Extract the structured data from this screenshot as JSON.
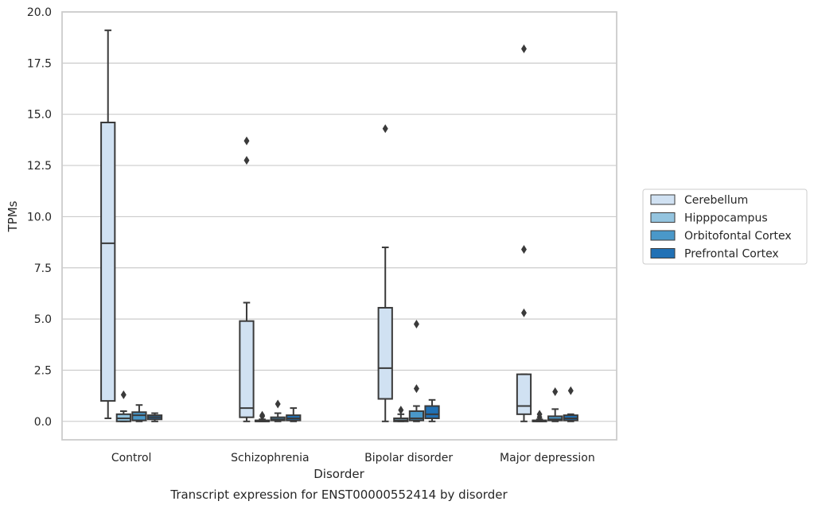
{
  "chart_data": {
    "type": "box",
    "title": "",
    "caption": "Transcript expression for ENST00000552414 by disorder",
    "xlabel": "Disorder",
    "ylabel": "TPMs",
    "ylim": [
      -0.9,
      20.0
    ],
    "yticks": [
      "0.0",
      "2.5",
      "5.0",
      "7.5",
      "10.0",
      "12.5",
      "15.0",
      "17.5",
      "20.0"
    ],
    "categories": [
      "Control",
      "Schizophrenia",
      "Bipolar disorder",
      "Major depression"
    ],
    "grid": "horizontal",
    "legend_position": "right",
    "series": [
      {
        "name": "Cerebellum",
        "color": "#d0e1f2",
        "boxes": [
          {
            "whislo": 0.15,
            "q1": 1.0,
            "med": 8.7,
            "q3": 14.6,
            "whishi": 19.1,
            "fliers": []
          },
          {
            "whislo": 0.0,
            "q1": 0.2,
            "med": 0.65,
            "q3": 4.9,
            "whishi": 5.8,
            "fliers": [
              12.75,
              13.7
            ]
          },
          {
            "whislo": 0.0,
            "q1": 1.1,
            "med": 2.6,
            "q3": 5.55,
            "whishi": 8.5,
            "fliers": [
              14.3
            ]
          },
          {
            "whislo": 0.0,
            "q1": 0.35,
            "med": 0.75,
            "q3": 2.3,
            "whishi": 2.3,
            "fliers": [
              5.3,
              8.4,
              18.2
            ]
          }
        ]
      },
      {
        "name": "Hipppocampus",
        "color": "#94c4df",
        "boxes": [
          {
            "whislo": 0.0,
            "q1": 0.0,
            "med": 0.15,
            "q3": 0.35,
            "whishi": 0.5,
            "fliers": [
              1.3
            ]
          },
          {
            "whislo": 0.0,
            "q1": 0.0,
            "med": 0.0,
            "q3": 0.05,
            "whishi": 0.1,
            "fliers": [
              0.25,
              0.3
            ]
          },
          {
            "whislo": 0.0,
            "q1": 0.0,
            "med": 0.05,
            "q3": 0.15,
            "whishi": 0.35,
            "fliers": [
              0.55
            ]
          },
          {
            "whislo": 0.0,
            "q1": 0.0,
            "med": 0.0,
            "q3": 0.05,
            "whishi": 0.1,
            "fliers": [
              0.2,
              0.35
            ]
          }
        ]
      },
      {
        "name": "Orbitofontal Cortex",
        "color": "#4a98c9",
        "boxes": [
          {
            "whislo": 0.0,
            "q1": 0.05,
            "med": 0.3,
            "q3": 0.45,
            "whishi": 0.8,
            "fliers": []
          },
          {
            "whislo": 0.0,
            "q1": 0.05,
            "med": 0.1,
            "q3": 0.2,
            "whishi": 0.4,
            "fliers": [
              0.85
            ]
          },
          {
            "whislo": 0.0,
            "q1": 0.05,
            "med": 0.15,
            "q3": 0.5,
            "whishi": 0.75,
            "fliers": [
              1.6,
              4.75
            ]
          },
          {
            "whislo": 0.0,
            "q1": 0.05,
            "med": 0.1,
            "q3": 0.25,
            "whishi": 0.6,
            "fliers": [
              1.45
            ]
          }
        ]
      },
      {
        "name": "Prefrontal Cortex",
        "color": "#2171b5",
        "boxes": [
          {
            "whislo": 0.0,
            "q1": 0.1,
            "med": 0.2,
            "q3": 0.3,
            "whishi": 0.4,
            "fliers": []
          },
          {
            "whislo": 0.0,
            "q1": 0.05,
            "med": 0.15,
            "q3": 0.3,
            "whishi": 0.65,
            "fliers": []
          },
          {
            "whislo": 0.0,
            "q1": 0.15,
            "med": 0.35,
            "q3": 0.75,
            "whishi": 1.05,
            "fliers": []
          },
          {
            "whislo": 0.0,
            "q1": 0.05,
            "med": 0.15,
            "q3": 0.3,
            "whishi": 0.35,
            "fliers": [
              1.5
            ]
          }
        ]
      }
    ]
  }
}
